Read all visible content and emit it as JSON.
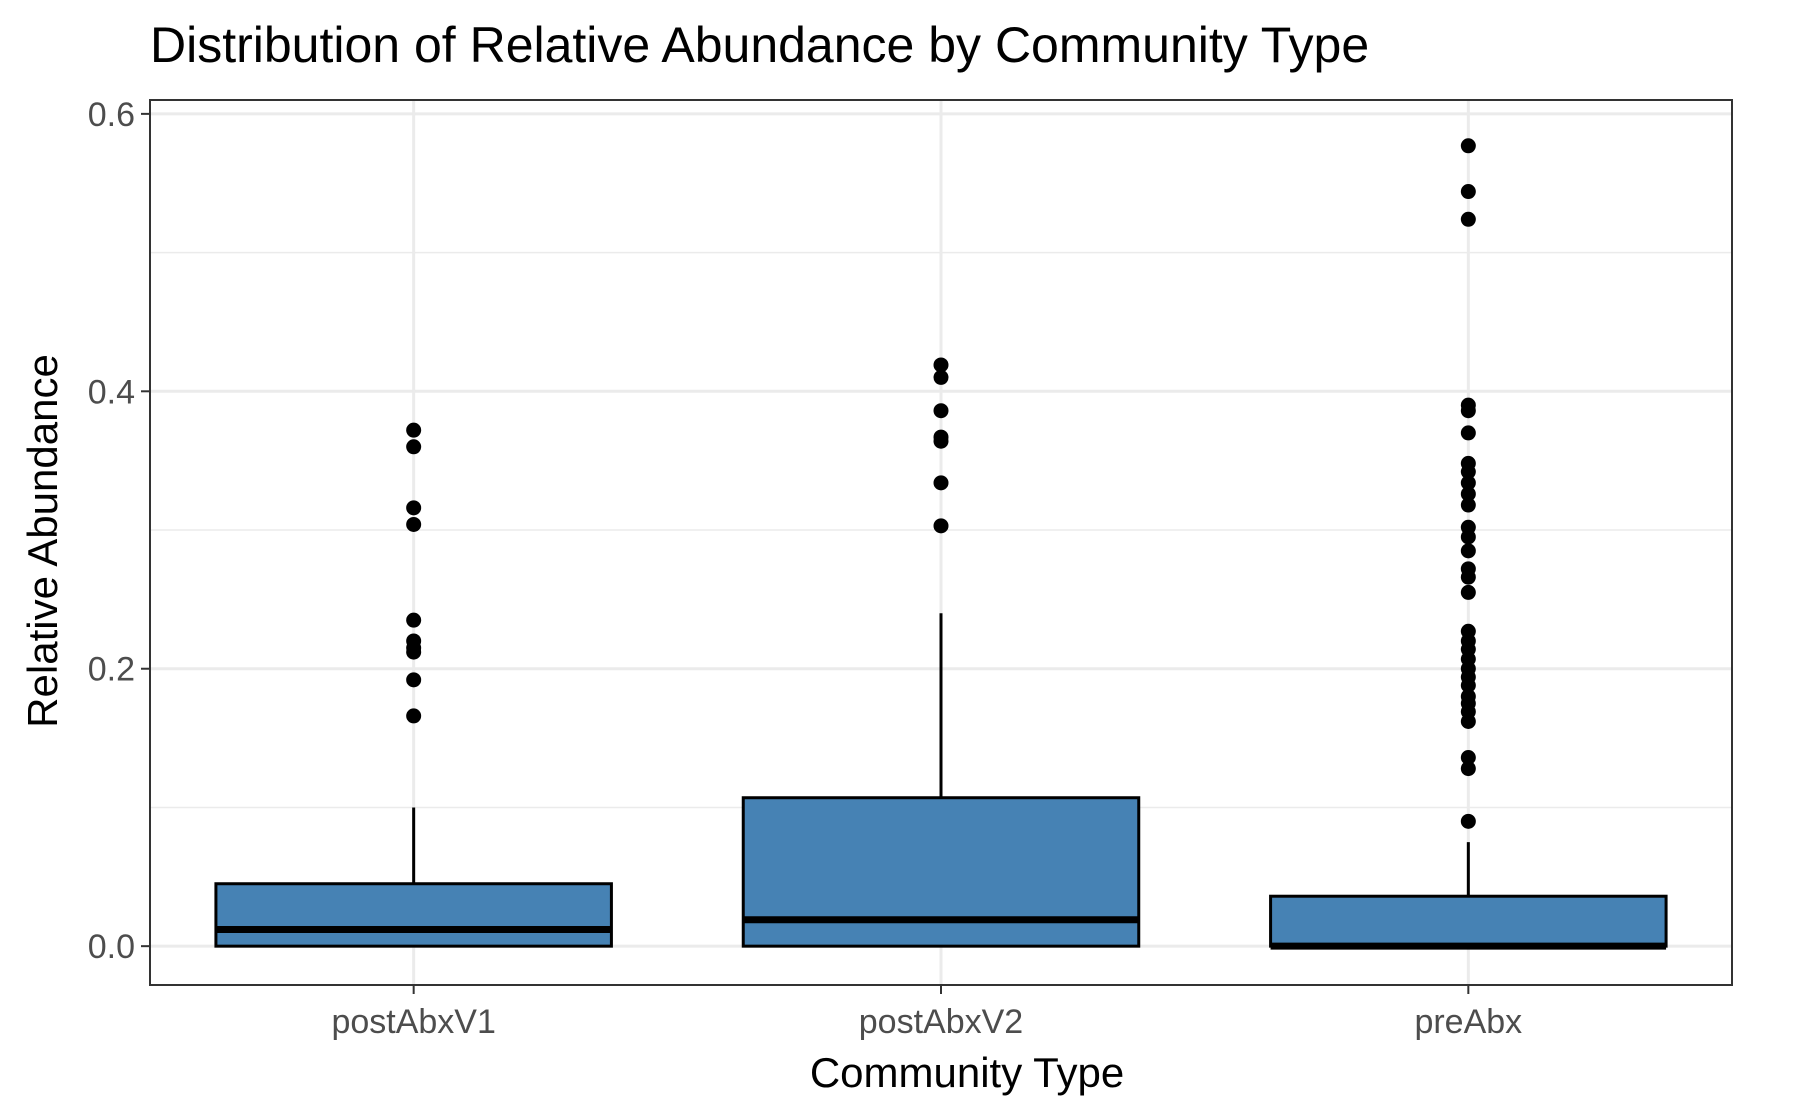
{
  "chart_data": {
    "type": "box",
    "title": "Distribution of Relative Abundance by Community Type",
    "xlabel": "Community Type",
    "ylabel": "Relative Abundance",
    "categories": [
      "postAbxV1",
      "postAbxV2",
      "preAbx"
    ],
    "ylim": [
      -0.028,
      0.61
    ],
    "yticks": [
      0.0,
      0.2,
      0.4,
      0.6
    ],
    "ytick_labels": [
      "0.0",
      "0.2",
      "0.4",
      "0.6"
    ],
    "grid": true,
    "legend": "none",
    "box_fill": "#4682b4",
    "box_stroke": "#000000",
    "series": [
      {
        "category": "postAbxV1",
        "min": 0.0,
        "q1": 0.0,
        "median": 0.012,
        "q3": 0.045,
        "max": 0.1,
        "outliers": [
          0.372,
          0.36,
          0.316,
          0.304,
          0.235,
          0.22,
          0.215,
          0.212,
          0.192,
          0.166
        ]
      },
      {
        "category": "postAbxV2",
        "min": 0.0,
        "q1": 0.0,
        "median": 0.019,
        "q3": 0.107,
        "max": 0.24,
        "outliers": [
          0.419,
          0.41,
          0.386,
          0.367,
          0.364,
          0.334,
          0.303
        ]
      },
      {
        "category": "preAbx",
        "min": 0.0,
        "q1": 0.0,
        "median": 0.0,
        "q3": 0.036,
        "max": 0.075,
        "outliers": [
          0.577,
          0.544,
          0.524,
          0.39,
          0.386,
          0.37,
          0.348,
          0.342,
          0.334,
          0.326,
          0.318,
          0.302,
          0.295,
          0.285,
          0.272,
          0.266,
          0.255,
          0.227,
          0.22,
          0.214,
          0.207,
          0.2,
          0.194,
          0.188,
          0.18,
          0.175,
          0.169,
          0.162,
          0.136,
          0.128,
          0.09
        ]
      }
    ]
  }
}
